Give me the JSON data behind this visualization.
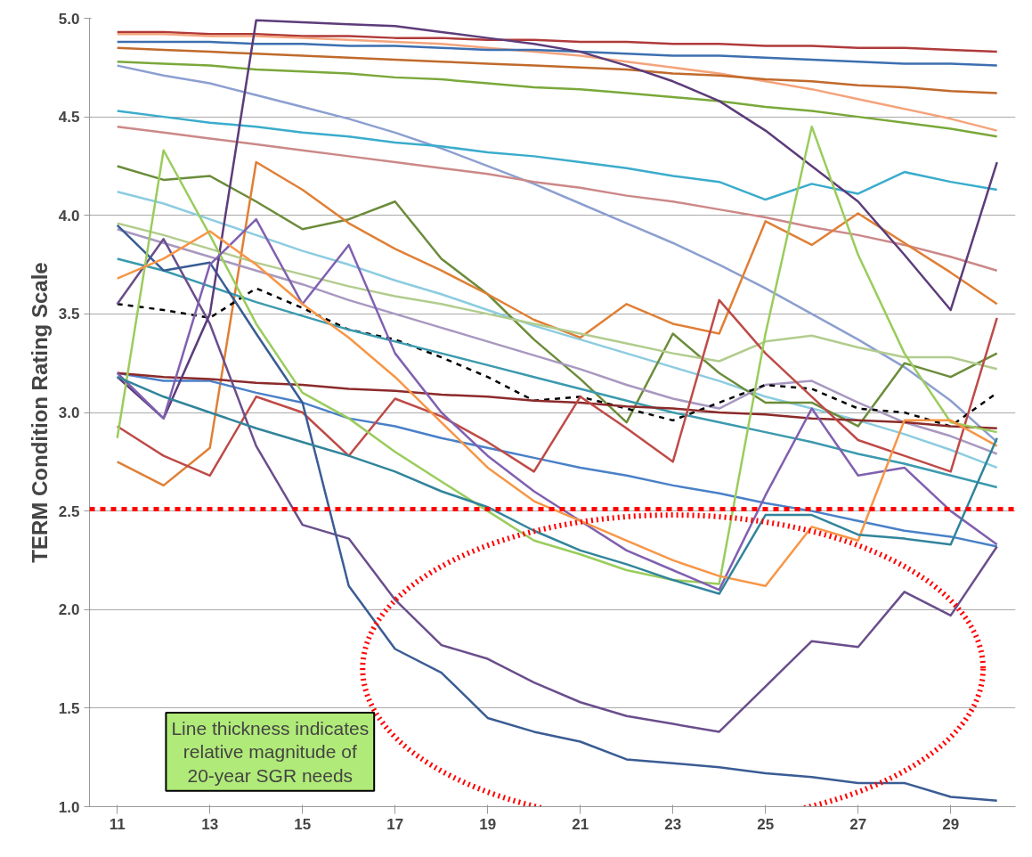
{
  "chart_data": {
    "type": "line",
    "ylabel": "TERM Condition Rating Scale",
    "x": [
      11,
      12,
      13,
      14,
      15,
      16,
      17,
      18,
      19,
      20,
      21,
      22,
      23,
      24,
      25,
      26,
      27,
      28,
      29,
      30
    ],
    "xlim": [
      10.4,
      30.4
    ],
    "xticks": [
      11,
      13,
      15,
      17,
      19,
      21,
      23,
      25,
      27,
      29
    ],
    "ylim": [
      1.0,
      5.0
    ],
    "yticks": [
      {
        "value": 1.0,
        "label": "1.0"
      },
      {
        "value": 1.5,
        "label": "1.5"
      },
      {
        "value": 2.0,
        "label": "2.0"
      },
      {
        "value": 2.5,
        "label": "2.5"
      },
      {
        "value": 3.0,
        "label": "3.0"
      },
      {
        "value": 3.5,
        "label": "3.5"
      },
      {
        "value": 4.0,
        "label": "4.0"
      },
      {
        "value": 4.5,
        "label": "4.5"
      },
      {
        "value": 5.0,
        "label": "5.0"
      }
    ],
    "grid": "y",
    "marker": "none",
    "line_style": "solid",
    "series": [
      {
        "color": "#b03a3a",
        "values": [
          4.93,
          4.93,
          4.92,
          4.92,
          4.91,
          4.91,
          4.9,
          4.9,
          4.89,
          4.89,
          4.88,
          4.88,
          4.87,
          4.87,
          4.86,
          4.86,
          4.85,
          4.85,
          4.84,
          4.83
        ]
      },
      {
        "color": "#f4a47c",
        "values": [
          4.92,
          4.92,
          4.91,
          4.91,
          4.9,
          4.89,
          4.88,
          4.87,
          4.85,
          4.83,
          4.81,
          4.78,
          4.75,
          4.72,
          4.68,
          4.64,
          4.59,
          4.54,
          4.49,
          4.43
        ]
      },
      {
        "color": "#3d6fb0",
        "values": [
          4.88,
          4.88,
          4.88,
          4.87,
          4.87,
          4.86,
          4.86,
          4.85,
          4.84,
          4.84,
          4.83,
          4.82,
          4.81,
          4.81,
          4.8,
          4.79,
          4.78,
          4.77,
          4.77,
          4.76
        ]
      },
      {
        "color": "#c06a2c",
        "values": [
          4.85,
          4.84,
          4.83,
          4.82,
          4.81,
          4.8,
          4.79,
          4.78,
          4.77,
          4.76,
          4.75,
          4.74,
          4.72,
          4.71,
          4.69,
          4.68,
          4.66,
          4.65,
          4.63,
          4.62
        ]
      },
      {
        "color": "#7aa83a",
        "values": [
          4.78,
          4.77,
          4.76,
          4.74,
          4.73,
          4.72,
          4.7,
          4.69,
          4.67,
          4.65,
          4.64,
          4.62,
          4.6,
          4.58,
          4.55,
          4.53,
          4.5,
          4.47,
          4.44,
          4.4
        ]
      },
      {
        "color": "#8c9fd0",
        "values": [
          4.76,
          4.71,
          4.67,
          4.61,
          4.55,
          4.49,
          4.42,
          4.34,
          4.25,
          4.16,
          4.06,
          3.96,
          3.86,
          3.75,
          3.63,
          3.5,
          3.37,
          3.23,
          3.06,
          2.85
        ]
      },
      {
        "color": "#3aaccc",
        "values": [
          4.53,
          4.5,
          4.47,
          4.45,
          4.42,
          4.4,
          4.37,
          4.35,
          4.32,
          4.3,
          4.27,
          4.24,
          4.2,
          4.17,
          4.08,
          4.16,
          4.11,
          4.22,
          4.17,
          4.13
        ]
      },
      {
        "color": "#cc8888",
        "values": [
          4.45,
          4.42,
          4.39,
          4.36,
          4.33,
          4.3,
          4.27,
          4.24,
          4.21,
          4.17,
          4.14,
          4.1,
          4.07,
          4.03,
          3.99,
          3.94,
          3.9,
          3.85,
          3.79,
          3.72
        ]
      },
      {
        "color": "#8ccce0",
        "values": [
          4.12,
          4.06,
          3.98,
          3.9,
          3.82,
          3.75,
          3.67,
          3.6,
          3.52,
          3.44,
          3.37,
          3.3,
          3.23,
          3.16,
          3.08,
          3.02,
          2.96,
          2.89,
          2.81,
          2.72
        ]
      },
      {
        "color": "#6b8c3a",
        "values": [
          4.25,
          4.18,
          4.2,
          4.07,
          3.93,
          3.98,
          4.07,
          3.78,
          3.6,
          3.37,
          3.17,
          2.95,
          3.4,
          3.2,
          3.05,
          3.05,
          2.93,
          3.25,
          3.18,
          3.3
        ]
      },
      {
        "color": "#e07f35",
        "values": [
          2.75,
          2.63,
          2.82,
          4.27,
          4.13,
          3.96,
          3.83,
          3.72,
          3.6,
          3.47,
          3.38,
          3.55,
          3.45,
          3.4,
          3.97,
          3.85,
          4.01,
          3.86,
          3.71,
          3.55
        ]
      },
      {
        "color": "#b2cc8e",
        "values": [
          3.96,
          3.9,
          3.83,
          3.76,
          3.7,
          3.64,
          3.59,
          3.55,
          3.5,
          3.45,
          3.4,
          3.35,
          3.3,
          3.26,
          3.36,
          3.39,
          3.33,
          3.28,
          3.28,
          3.22
        ]
      },
      {
        "color": "#a898c0",
        "values": [
          3.93,
          3.86,
          3.79,
          3.72,
          3.65,
          3.57,
          3.5,
          3.43,
          3.36,
          3.29,
          3.22,
          3.14,
          3.07,
          3.02,
          3.14,
          3.16,
          3.05,
          2.95,
          2.88,
          2.79
        ]
      },
      {
        "color": "#000000",
        "line_style": "dashed",
        "values": [
          3.55,
          3.52,
          3.48,
          3.63,
          3.53,
          3.42,
          3.37,
          3.28,
          3.18,
          3.06,
          3.08,
          3.02,
          2.96,
          3.05,
          3.14,
          3.12,
          3.02,
          3.0,
          2.93,
          3.1
        ]
      },
      {
        "color": "#3b9aae",
        "values": [
          3.78,
          3.72,
          3.64,
          3.56,
          3.49,
          3.42,
          3.36,
          3.3,
          3.24,
          3.18,
          3.12,
          3.06,
          3.0,
          2.95,
          2.9,
          2.85,
          2.79,
          2.74,
          2.68,
          2.62
        ]
      },
      {
        "color": "#4a80c8",
        "values": [
          3.2,
          3.16,
          3.16,
          3.1,
          3.05,
          2.97,
          2.93,
          2.87,
          2.82,
          2.77,
          2.72,
          2.68,
          2.63,
          2.59,
          2.54,
          2.5,
          2.45,
          2.4,
          2.37,
          2.32
        ]
      },
      {
        "color": "#8c2a2a",
        "values": [
          3.2,
          3.18,
          3.17,
          3.15,
          3.14,
          3.12,
          3.11,
          3.09,
          3.08,
          3.06,
          3.05,
          3.03,
          3.02,
          3.0,
          2.99,
          2.97,
          2.96,
          2.95,
          2.93,
          2.92
        ]
      },
      {
        "color": "#be4b48",
        "values": [
          2.93,
          2.78,
          2.68,
          3.08,
          3.0,
          2.78,
          3.07,
          2.98,
          2.85,
          2.7,
          3.08,
          2.92,
          2.75,
          3.57,
          3.3,
          3.08,
          2.86,
          2.78,
          2.7,
          3.48
        ]
      },
      {
        "color": "#6a4e8c",
        "values": [
          3.55,
          3.88,
          3.45,
          2.83,
          2.43,
          2.36,
          2.05,
          1.82,
          1.75,
          1.63,
          1.53,
          1.46,
          1.42,
          1.38,
          1.61,
          1.84,
          1.81,
          2.09,
          1.97,
          2.32
        ]
      },
      {
        "color": "#3a5c94",
        "values": [
          3.95,
          3.72,
          3.76,
          3.4,
          3.05,
          2.12,
          1.8,
          1.68,
          1.45,
          1.38,
          1.33,
          1.24,
          1.22,
          1.2,
          1.17,
          1.15,
          1.12,
          1.12,
          1.05,
          1.03
        ]
      },
      {
        "color": "#5c3c7a",
        "values": [
          3.18,
          2.97,
          3.5,
          4.99,
          4.98,
          4.97,
          4.96,
          4.93,
          4.9,
          4.87,
          4.83,
          4.76,
          4.68,
          4.58,
          4.43,
          4.25,
          4.07,
          3.8,
          3.52,
          4.27
        ]
      },
      {
        "color": "#9acc5c",
        "values": [
          2.87,
          4.33,
          3.9,
          3.45,
          3.1,
          2.97,
          2.8,
          2.65,
          2.5,
          2.35,
          2.28,
          2.2,
          2.15,
          2.13,
          3.4,
          4.45,
          3.8,
          3.3,
          2.95,
          2.9
        ]
      },
      {
        "color": "#8060b0",
        "values": [
          3.2,
          2.97,
          3.75,
          3.98,
          3.55,
          3.85,
          3.3,
          3.0,
          2.78,
          2.6,
          2.45,
          2.3,
          2.2,
          2.1,
          2.58,
          3.02,
          2.68,
          2.72,
          2.5,
          2.33
        ]
      },
      {
        "color": "#f79646",
        "values": [
          3.68,
          3.78,
          3.92,
          3.75,
          3.55,
          3.38,
          3.18,
          2.95,
          2.72,
          2.55,
          2.45,
          2.35,
          2.25,
          2.17,
          2.12,
          2.42,
          2.35,
          2.96,
          2.96,
          2.83
        ]
      },
      {
        "color": "#31849b",
        "values": [
          3.18,
          3.08,
          3.0,
          2.92,
          2.85,
          2.78,
          2.7,
          2.6,
          2.52,
          2.4,
          2.3,
          2.23,
          2.15,
          2.08,
          2.48,
          2.48,
          2.38,
          2.36,
          2.33,
          2.87
        ]
      }
    ],
    "ref_lines": [
      {
        "axis": "y",
        "value": 2.51,
        "color": "#ff0000",
        "line_style": "dashed"
      }
    ],
    "annotations": [
      "Line thickness indicates\nrelative magnitude of\n20-year SGR needs"
    ]
  }
}
